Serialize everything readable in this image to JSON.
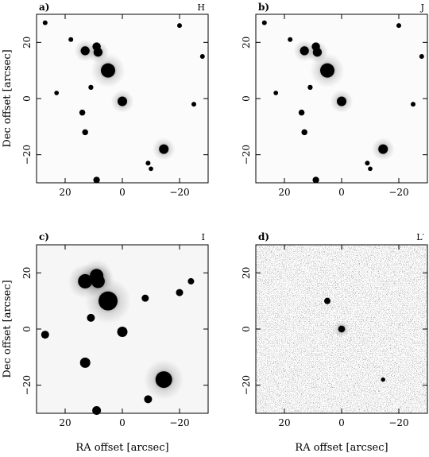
{
  "figure": {
    "x_axis_label": "RA offset [arcsec]",
    "y_axis_label": "Dec offset [arcsec]",
    "x_range": [
      30,
      -30
    ],
    "y_range": [
      -30,
      30
    ],
    "x_ticks": [
      20,
      0,
      -20
    ],
    "y_ticks": [
      20,
      0,
      -20
    ],
    "x_tick_labels": [
      "20",
      "0",
      "−20"
    ],
    "y_tick_labels": [
      "20",
      "0",
      "−20"
    ]
  },
  "panels": [
    {
      "id": "a",
      "letter": "a)",
      "band": "H"
    },
    {
      "id": "b",
      "letter": "b)",
      "band": "J"
    },
    {
      "id": "c",
      "letter": "c)",
      "band": "I"
    },
    {
      "id": "d",
      "letter": "d)",
      "band": "L′"
    }
  ],
  "chart_data": {
    "type": "scatter",
    "xlabel": "RA offset [arcsec]",
    "ylabel": "Dec offset [arcsec]",
    "xlim": [
      30,
      -30
    ],
    "ylim": [
      -30,
      30
    ],
    "grid": false,
    "series": [
      {
        "name": "H",
        "x": [
          5,
          13,
          9,
          8.5,
          0,
          27,
          11,
          -14.5,
          9,
          -9,
          14,
          -10,
          -20,
          -28,
          18,
          23,
          13,
          9,
          -25
        ],
        "y": [
          10,
          17,
          18.5,
          16.5,
          -1,
          27,
          4,
          -18,
          -29,
          -23,
          -5,
          -25,
          26,
          15,
          21,
          2,
          -12,
          19,
          -2
        ]
      },
      {
        "name": "J",
        "x": [
          5,
          13,
          9,
          8.5,
          0,
          27,
          11,
          -14.5,
          9,
          -9,
          14,
          -10,
          -20,
          -28,
          18,
          23,
          13,
          9,
          -25
        ],
        "y": [
          10,
          17,
          18.5,
          16.5,
          -1,
          27,
          4,
          -18,
          -29,
          -23,
          -5,
          -25,
          26,
          15,
          21,
          2,
          -12,
          19,
          -2
        ]
      },
      {
        "name": "I",
        "x": [
          5,
          13,
          9,
          8.5,
          0,
          11,
          -14.5,
          9,
          -9,
          13,
          27,
          -8,
          -20,
          -24
        ],
        "y": [
          10,
          17,
          19,
          17,
          -1,
          4,
          -18,
          -29,
          -25,
          -12,
          -2,
          11,
          13,
          17
        ]
      },
      {
        "name": "L′",
        "x": [
          0,
          5,
          -14.5
        ],
        "y": [
          0,
          10,
          -18
        ]
      }
    ]
  }
}
